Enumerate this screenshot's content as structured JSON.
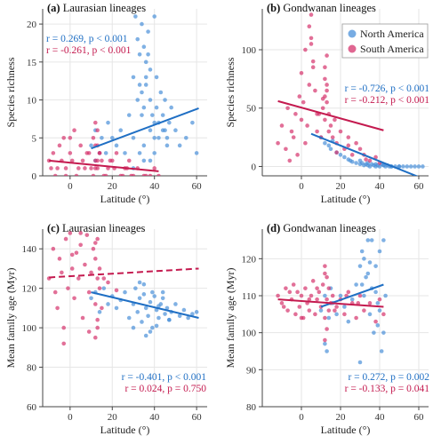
{
  "colors": {
    "north": "#4a90d9",
    "south": "#d6336c",
    "north_line": "#1f6fc4",
    "south_line": "#c41a4f"
  },
  "legend": {
    "north": "North America",
    "south": "South America"
  },
  "chart_data": [
    {
      "type": "scatter",
      "id": "a",
      "letter": "(a)",
      "title": "Laurasian lineages",
      "xlabel": "Latitude (°)",
      "ylabel": "Species richness",
      "xlim": [
        -13,
        65
      ],
      "ylim": [
        0,
        22
      ],
      "xticks": [
        0,
        20,
        40,
        60
      ],
      "yticks": [
        0,
        5,
        10,
        15,
        20
      ],
      "stats": [
        {
          "series": "north",
          "text": "r =  0.269, p < 0.001"
        },
        {
          "series": "south",
          "text": "r = -0.261, p < 0.001"
        }
      ],
      "series": [
        {
          "key": "north",
          "x": [
            10,
            12,
            14,
            12,
            15,
            17,
            18,
            20,
            22,
            24,
            26,
            28,
            30,
            31,
            32,
            33,
            33,
            34,
            34,
            35,
            35,
            36,
            36,
            37,
            38,
            38,
            39,
            40,
            41,
            42,
            43,
            44,
            45,
            46,
            47,
            48,
            50,
            52,
            55,
            58,
            60,
            30,
            32,
            34,
            36,
            37,
            38,
            40,
            41,
            42,
            33,
            35,
            38,
            40,
            44,
            46,
            30,
            35,
            40,
            45
          ],
          "y": [
            4,
            2,
            3,
            6,
            5,
            3,
            7,
            5,
            4,
            6,
            3,
            8,
            5,
            21,
            18,
            16,
            12,
            20,
            11,
            17,
            9,
            15,
            13,
            19,
            14,
            10,
            8,
            21,
            13,
            7,
            11,
            6,
            10,
            5,
            7,
            9,
            6,
            4,
            5,
            7,
            3,
            13,
            10,
            8,
            12,
            16,
            6,
            7,
            9,
            5,
            3,
            4,
            2,
            5,
            8,
            4,
            1,
            2,
            3,
            6
          ],
          "fit": {
            "x0": 10,
            "y0": 3.6,
            "x1": 61,
            "y1": 8.9,
            "dashed": false
          }
        },
        {
          "key": "south",
          "x": [
            -10,
            -8,
            -6,
            -5,
            -4,
            -3,
            -2,
            0,
            1,
            2,
            4,
            5,
            6,
            8,
            10,
            11,
            12,
            12,
            13,
            13,
            14,
            15,
            16,
            18,
            20,
            22,
            24,
            26,
            28,
            30,
            32,
            35,
            38,
            40,
            42,
            -7,
            -2,
            3,
            7,
            11,
            13,
            17,
            21,
            25,
            29,
            -9,
            0,
            9,
            12,
            14,
            19,
            27,
            36,
            13,
            12
          ],
          "y": [
            2,
            3,
            1,
            4,
            2,
            5,
            1,
            3,
            2,
            6,
            1,
            4,
            2,
            3,
            1,
            5,
            2,
            7,
            4,
            1,
            3,
            2,
            0,
            1,
            2,
            3,
            0,
            1,
            2,
            0,
            1,
            0,
            0,
            1,
            0,
            0,
            0,
            0,
            1,
            0,
            6,
            0,
            1,
            0,
            0,
            1,
            5,
            3,
            4,
            3,
            2,
            1,
            0,
            2,
            1
          ],
          "fit": {
            "x0": -10,
            "y0": 2.0,
            "x1": 42,
            "y1": 0.6,
            "dashed": false
          }
        }
      ]
    },
    {
      "type": "scatter",
      "id": "b",
      "letter": "(b)",
      "title": "Gondwanan lineages",
      "xlabel": "Latitude (°)",
      "ylabel": "Species richness",
      "xlim": [
        -20,
        65
      ],
      "ylim": [
        -8,
        135
      ],
      "xticks": [
        0,
        20,
        40,
        60
      ],
      "yticks": [
        0,
        50,
        100
      ],
      "stats": [
        {
          "series": "north",
          "text": "r = -0.726, p < 0.001"
        },
        {
          "series": "south",
          "text": "r = -0.212, p < 0.001"
        }
      ],
      "series": [
        {
          "key": "north",
          "x": [
            10,
            12,
            14,
            15,
            16,
            18,
            20,
            22,
            24,
            25,
            26,
            28,
            30,
            31,
            32,
            33,
            34,
            35,
            36,
            37,
            38,
            39,
            40,
            41,
            42,
            43,
            44,
            45,
            46,
            48,
            50,
            52,
            54,
            56,
            58,
            60,
            62,
            30,
            34,
            38,
            42,
            46,
            50
          ],
          "y": [
            25,
            20,
            18,
            15,
            22,
            12,
            10,
            8,
            6,
            5,
            4,
            3,
            2,
            3,
            1,
            2,
            1,
            0,
            2,
            1,
            0,
            1,
            0,
            2,
            1,
            0,
            1,
            0,
            0,
            0,
            0,
            0,
            0,
            0,
            0,
            0,
            0,
            5,
            3,
            2,
            1,
            0,
            0
          ],
          "fit": {
            "x0": 5,
            "y0": 28,
            "x1": 63,
            "y1": -11,
            "dashed": false
          }
        },
        {
          "key": "south",
          "x": [
            -12,
            -10,
            -8,
            -7,
            -5,
            -4,
            -3,
            -2,
            -1,
            0,
            1,
            2,
            3,
            4,
            5,
            5,
            6,
            7,
            8,
            9,
            10,
            11,
            12,
            12,
            12,
            12,
            13,
            13,
            13,
            14,
            14,
            15,
            16,
            17,
            18,
            20,
            22,
            24,
            26,
            28,
            30,
            32,
            35,
            38,
            40,
            -6,
            0,
            2,
            8,
            11,
            13,
            18,
            24,
            33,
            4,
            5,
            6
          ],
          "y": [
            20,
            35,
            15,
            50,
            30,
            25,
            45,
            10,
            60,
            40,
            55,
            20,
            35,
            70,
            130,
            110,
            90,
            65,
            30,
            45,
            25,
            50,
            85,
            75,
            60,
            40,
            95,
            70,
            55,
            45,
            30,
            35,
            25,
            40,
            20,
            30,
            15,
            25,
            10,
            20,
            15,
            10,
            5,
            8,
            3,
            5,
            80,
            100,
            45,
            58,
            65,
            12,
            18,
            6,
            120,
            105,
            85
          ],
          "fit": {
            "x0": -12,
            "y0": 56,
            "x1": 42,
            "y1": 31,
            "dashed": false
          }
        }
      ]
    },
    {
      "type": "scatter",
      "id": "c",
      "letter": "(c)",
      "title": "Laurasian lineages",
      "xlabel": "Latitude (°)",
      "ylabel": "Mean family age (Myr)",
      "xlim": [
        -13,
        65
      ],
      "ylim": [
        60,
        150
      ],
      "xticks": [
        0,
        20,
        40,
        60
      ],
      "yticks": [
        60,
        80,
        100,
        120,
        140
      ],
      "stats": [
        {
          "series": "north",
          "text": "r = -0.401, p < 0.001"
        },
        {
          "series": "south",
          "text": "r =  0.024, p = 0.750"
        }
      ],
      "series": [
        {
          "key": "north",
          "x": [
            10,
            12,
            14,
            16,
            18,
            20,
            22,
            24,
            26,
            28,
            30,
            31,
            32,
            33,
            34,
            35,
            36,
            37,
            38,
            39,
            40,
            41,
            42,
            43,
            44,
            45,
            46,
            47,
            48,
            50,
            52,
            54,
            56,
            58,
            60,
            35,
            38,
            41,
            44,
            47,
            30,
            33,
            36,
            39,
            42
          ],
          "y": [
            115,
            118,
            108,
            120,
            112,
            116,
            110,
            114,
            118,
            105,
            112,
            120,
            108,
            115,
            103,
            117,
            110,
            106,
            113,
            100,
            116,
            109,
            105,
            112,
            118,
            107,
            110,
            104,
            108,
            112,
            106,
            109,
            105,
            107,
            108,
            122,
            98,
            101,
            115,
            104,
            100,
            123,
            96,
            118,
            111
          ],
          "fit": {
            "x0": 10,
            "y0": 118,
            "x1": 61,
            "y1": 105,
            "dashed": false
          }
        },
        {
          "key": "south",
          "x": [
            -10,
            -8,
            -6,
            -5,
            -4,
            -3,
            -2,
            -1,
            0,
            1,
            2,
            3,
            4,
            5,
            6,
            7,
            8,
            9,
            10,
            11,
            12,
            12,
            12,
            13,
            13,
            13,
            14,
            14,
            15,
            16,
            -7,
            -3,
            1,
            5,
            9,
            12,
            13,
            18,
            22
          ],
          "y": [
            125,
            140,
            110,
            135,
            128,
            100,
            145,
            120,
            148,
            130,
            115,
            138,
            125,
            142,
            105,
            132,
            147,
            118,
            128,
            140,
            95,
            112,
            135,
            125,
            100,
            145,
            120,
            130,
            110,
            125,
            118,
            92,
            137,
            148,
            98,
            143,
            104,
            123,
            119
          ],
          "fit": {
            "x0": -10,
            "y0": 125.5,
            "x1": 61,
            "y1": 130,
            "dashed": true
          }
        }
      ]
    },
    {
      "type": "scatter",
      "id": "d",
      "letter": "(d)",
      "title": "Gondwanan lineages",
      "xlabel": "Latitude (°)",
      "ylabel": "Mean family age (Myr)",
      "xlim": [
        -20,
        65
      ],
      "ylim": [
        80,
        128
      ],
      "xticks": [
        0,
        20,
        40,
        60
      ],
      "yticks": [
        80,
        90,
        100,
        110,
        120
      ],
      "stats": [
        {
          "series": "north",
          "text": "r =  0.272, p = 0.002"
        },
        {
          "series": "south",
          "text": "r = -0.133, p = 0.041"
        }
      ],
      "series": [
        {
          "key": "north",
          "x": [
            10,
            12,
            14,
            15,
            16,
            18,
            20,
            22,
            24,
            26,
            28,
            30,
            31,
            32,
            33,
            34,
            35,
            36,
            37,
            38,
            39,
            40,
            41,
            42,
            43,
            30,
            32,
            34,
            36,
            38,
            40,
            42,
            31,
            35,
            39,
            12,
            13
          ],
          "y": [
            106,
            110,
            104,
            112,
            108,
            105,
            110,
            107,
            103,
            109,
            113,
            118,
            122,
            110,
            115,
            125,
            105,
            112,
            100,
            118,
            108,
            122,
            95,
            125,
            110,
            92,
            120,
            116,
            125,
            111,
            106,
            100,
            113,
            119,
            102,
            97,
            95
          ],
          "fit": {
            "x0": 10,
            "y0": 107,
            "x1": 42,
            "y1": 113,
            "dashed": false
          }
        },
        {
          "key": "south",
          "x": [
            -12,
            -10,
            -8,
            -7,
            -5,
            -4,
            -3,
            -2,
            -1,
            0,
            1,
            2,
            3,
            4,
            5,
            6,
            7,
            8,
            9,
            10,
            11,
            12,
            12,
            12,
            13,
            13,
            13,
            14,
            14,
            15,
            16,
            18,
            20,
            22,
            24,
            26,
            28,
            30,
            32,
            35,
            38,
            40,
            42,
            -9,
            -6,
            0,
            4,
            8,
            12,
            17,
            23,
            29
          ],
          "y": [
            110,
            108,
            112,
            106,
            109,
            113,
            105,
            111,
            107,
            110,
            104,
            112,
            108,
            106,
            110,
            114,
            105,
            109,
            111,
            107,
            113,
            98,
            118,
            104,
            115,
            101,
            109,
            112,
            106,
            108,
            110,
            107,
            109,
            105,
            111,
            108,
            104,
            110,
            106,
            108,
            103,
            109,
            105,
            107,
            111,
            104,
            109,
            112,
            116,
            106,
            110,
            108
          ],
          "fit": {
            "x0": -12,
            "y0": 109,
            "x1": 42,
            "y1": 107,
            "dashed": false
          }
        }
      ]
    }
  ]
}
